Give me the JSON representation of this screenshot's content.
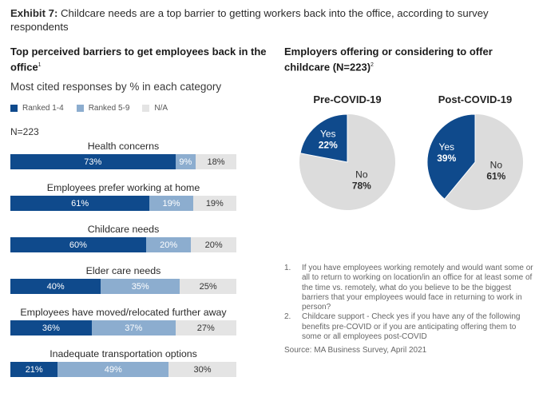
{
  "exhibit": {
    "label": "Exhibit 7:",
    "title": "Childcare needs are a top barrier to getting workers back into the office, according to survey respondents"
  },
  "left_panel": {
    "title": "Top perceived barriers to get employees back in the office",
    "title_sup": "1",
    "subtitle": "Most cited responses by % in each category",
    "n_label": "N=223"
  },
  "right_panel": {
    "title": "Employers offering or considering to offer childcare (N=223)",
    "title_sup": "2"
  },
  "colors": {
    "ranked_1_4": "#0f4a8c",
    "ranked_5_9": "#8cadcf",
    "na": "#e4e4e4",
    "pie_no": "#dcdcdc"
  },
  "chart_data": [
    {
      "type": "bar",
      "orientation": "horizontal",
      "stacked": true,
      "legend_position": "top",
      "categories": [
        "Health concerns",
        "Employees prefer working at home",
        "Childcare needs",
        "Elder care needs",
        "Employees have moved/relocated further away",
        "Inadequate transportation options"
      ],
      "series": [
        {
          "name": "Ranked 1-4",
          "values": [
            73,
            61,
            60,
            40,
            36,
            21
          ],
          "labels": [
            "73%",
            "61%",
            "60%",
            "40%",
            "36%",
            "21%"
          ]
        },
        {
          "name": "Ranked 5-9",
          "values": [
            9,
            19,
            20,
            35,
            37,
            49
          ],
          "labels": [
            "9%",
            "19%",
            "20%",
            "35%",
            "37%",
            "49%"
          ]
        },
        {
          "name": "N/A",
          "values": [
            18,
            19,
            20,
            25,
            27,
            30
          ],
          "labels": [
            "18%",
            "19%",
            "20%",
            "25%",
            "27%",
            "30%"
          ]
        }
      ]
    },
    {
      "type": "pie",
      "title": "Pre-COVID-19",
      "slices": [
        {
          "label": "Yes",
          "value": 22,
          "value_label": "22%"
        },
        {
          "label": "No",
          "value": 78,
          "value_label": "78%"
        }
      ]
    },
    {
      "type": "pie",
      "title": "Post-COVID-19",
      "slices": [
        {
          "label": "Yes",
          "value": 39,
          "value_label": "39%"
        },
        {
          "label": "No",
          "value": 61,
          "value_label": "61%"
        }
      ]
    }
  ],
  "notes": [
    {
      "num": "1.",
      "text": "If you have employees working remotely and would want some or all to return to working on location/in an office for at least some of the time vs. remotely, what do you believe to be the biggest barriers that your employees would face in returning to work in person?"
    },
    {
      "num": "2.",
      "text": "Childcare support - Check yes if you have any of the following benefits pre-COVID or if you are anticipating offering them to some or all employees post-COVID"
    }
  ],
  "source": "Source: MA Business Survey, April 2021"
}
